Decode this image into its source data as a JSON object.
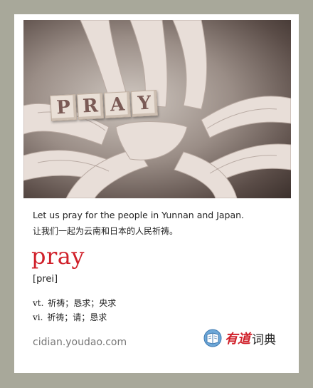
{
  "photo": {
    "blocks": [
      "P",
      "R",
      "A",
      "Y"
    ]
  },
  "sentence": {
    "en": "Let us pray for the people in Yunnan and Japan.",
    "zh": "让我们一起为云南和日本的人民祈祷。"
  },
  "entry": {
    "word": "pray",
    "phonetic": "[prei]",
    "definitions": [
      {
        "pos": "vt.",
        "meaning": "祈祷；恳求；央求"
      },
      {
        "pos": "vi.",
        "meaning": "祈祷；请；恳求"
      }
    ]
  },
  "footer": {
    "site": "cidian.youdao.com",
    "logo_brand": "有道",
    "logo_suffix": "词典",
    "logo_icon": "dictionary-badge-icon"
  },
  "colors": {
    "background": "#a8a89a",
    "accent": "#d0202a"
  }
}
